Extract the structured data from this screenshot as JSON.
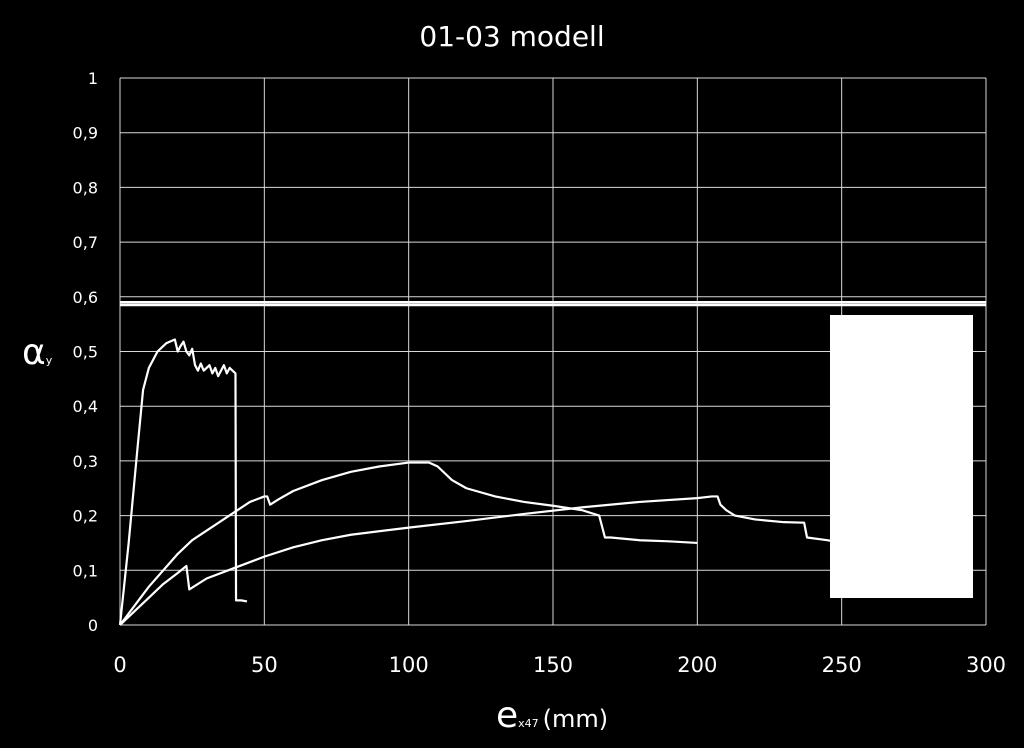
{
  "colors": {
    "background": "#000000",
    "foreground": "#ffffff",
    "grid": "#d9d9d9",
    "legend_box": "#ffffff"
  },
  "chart_data": {
    "type": "line",
    "title": "01-03 modell",
    "xlabel": {
      "main": "e",
      "subscript": "x47",
      "unit": "(mm)"
    },
    "ylabel": {
      "main": "α",
      "subscript": "y"
    },
    "xlim": [
      0,
      300
    ],
    "ylim": [
      0,
      1
    ],
    "xticks": [
      "0",
      "50",
      "100",
      "150",
      "200",
      "250",
      "300"
    ],
    "yticks": [
      "0",
      "0,1",
      "0,2",
      "0,3",
      "0,4",
      "0,5",
      "0,6",
      "0,7",
      "0,8",
      "0,9",
      "1"
    ],
    "grid": true,
    "legend_placement": "right",
    "reference_lines": [
      {
        "y": 0.585
      },
      {
        "y": 0.59
      }
    ],
    "series": [
      {
        "points": [
          [
            0,
            0
          ],
          [
            3,
            0.15
          ],
          [
            6,
            0.32
          ],
          [
            8,
            0.43
          ],
          [
            10,
            0.47
          ],
          [
            13,
            0.5
          ],
          [
            16,
            0.515
          ],
          [
            19,
            0.522
          ],
          [
            20,
            0.5
          ],
          [
            21,
            0.51
          ],
          [
            22,
            0.518
          ],
          [
            23,
            0.5
          ],
          [
            24,
            0.493
          ],
          [
            25,
            0.505
          ],
          [
            26,
            0.475
          ],
          [
            27,
            0.465
          ],
          [
            28,
            0.478
          ],
          [
            29,
            0.465
          ],
          [
            30,
            0.47
          ],
          [
            31,
            0.475
          ],
          [
            32,
            0.46
          ],
          [
            33,
            0.47
          ],
          [
            34,
            0.455
          ],
          [
            35,
            0.465
          ],
          [
            36,
            0.475
          ],
          [
            37,
            0.46
          ],
          [
            38,
            0.47
          ],
          [
            39,
            0.465
          ],
          [
            40,
            0.46
          ],
          [
            40.2,
            0.045
          ],
          [
            42,
            0.045
          ],
          [
            44,
            0.043
          ]
        ]
      },
      {
        "points": [
          [
            0,
            0
          ],
          [
            10,
            0.07
          ],
          [
            20,
            0.13
          ],
          [
            25,
            0.155
          ],
          [
            35,
            0.19
          ],
          [
            45,
            0.225
          ],
          [
            50,
            0.235
          ],
          [
            51,
            0.235
          ],
          [
            52,
            0.22
          ],
          [
            55,
            0.23
          ],
          [
            60,
            0.245
          ],
          [
            70,
            0.265
          ],
          [
            80,
            0.28
          ],
          [
            90,
            0.29
          ],
          [
            100,
            0.297
          ],
          [
            107,
            0.297
          ],
          [
            110,
            0.29
          ],
          [
            115,
            0.265
          ],
          [
            120,
            0.25
          ],
          [
            130,
            0.235
          ],
          [
            140,
            0.225
          ],
          [
            150,
            0.218
          ],
          [
            160,
            0.21
          ],
          [
            166,
            0.2
          ],
          [
            168,
            0.16
          ],
          [
            170,
            0.16
          ],
          [
            180,
            0.155
          ],
          [
            190,
            0.153
          ],
          [
            200,
            0.15
          ]
        ]
      },
      {
        "points": [
          [
            0,
            0
          ],
          [
            5,
            0.025
          ],
          [
            10,
            0.05
          ],
          [
            15,
            0.075
          ],
          [
            20,
            0.095
          ],
          [
            23,
            0.108
          ],
          [
            24,
            0.065
          ],
          [
            30,
            0.085
          ],
          [
            40,
            0.105
          ],
          [
            50,
            0.125
          ],
          [
            60,
            0.142
          ],
          [
            70,
            0.155
          ],
          [
            80,
            0.165
          ],
          [
            100,
            0.178
          ],
          [
            120,
            0.19
          ],
          [
            140,
            0.203
          ],
          [
            160,
            0.215
          ],
          [
            180,
            0.225
          ],
          [
            200,
            0.232
          ],
          [
            205,
            0.235
          ],
          [
            207,
            0.235
          ],
          [
            208,
            0.22
          ],
          [
            210,
            0.21
          ],
          [
            213,
            0.2
          ],
          [
            220,
            0.193
          ],
          [
            230,
            0.188
          ],
          [
            237,
            0.187
          ],
          [
            238,
            0.16
          ],
          [
            245,
            0.155
          ],
          [
            250,
            0.15
          ]
        ]
      }
    ]
  }
}
